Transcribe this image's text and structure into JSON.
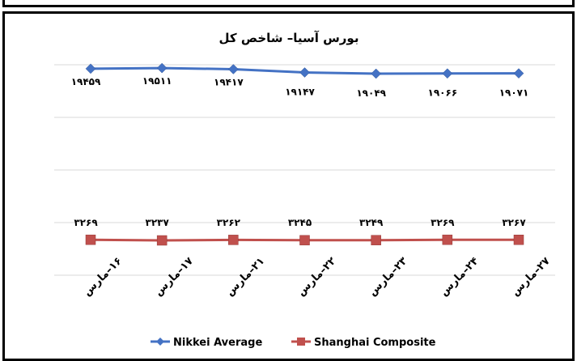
{
  "chart_data": {
    "type": "line",
    "title": "بورس آسیا– شاخص کل",
    "categories": [
      "۱۶–مارس",
      "۱۷–مارس",
      "۲۱–مارس",
      "۲۲–مارس",
      "۲۳–مارس",
      "۲۴–مارس",
      "۲۷–مارس"
    ],
    "series": [
      {
        "name": "Nikkei Average",
        "color": "#4472C4",
        "marker": "diamond",
        "values": [
          19459,
          19511,
          19417,
          19147,
          19049,
          19066,
          19071
        ],
        "labels": [
          "۱۹۴۵۹",
          "۱۹۵۱۱",
          "۱۹۴۱۷",
          "۱۹۱۴۷",
          "۱۹۰۴۹",
          "۱۹۰۶۶",
          "۱۹۰۷۱"
        ]
      },
      {
        "name": "Shanghai Composite",
        "color": "#C0504D",
        "marker": "square",
        "values": [
          3269,
          3237,
          3262,
          3245,
          3249,
          3269,
          3267
        ],
        "labels": [
          "۳۲۶۹",
          "۳۲۳۷",
          "۳۲۶۲",
          "۳۲۴۵",
          "۳۲۴۹",
          "۳۲۶۹",
          "۳۲۶۷"
        ]
      }
    ],
    "grid": true,
    "legend": "bottom"
  }
}
